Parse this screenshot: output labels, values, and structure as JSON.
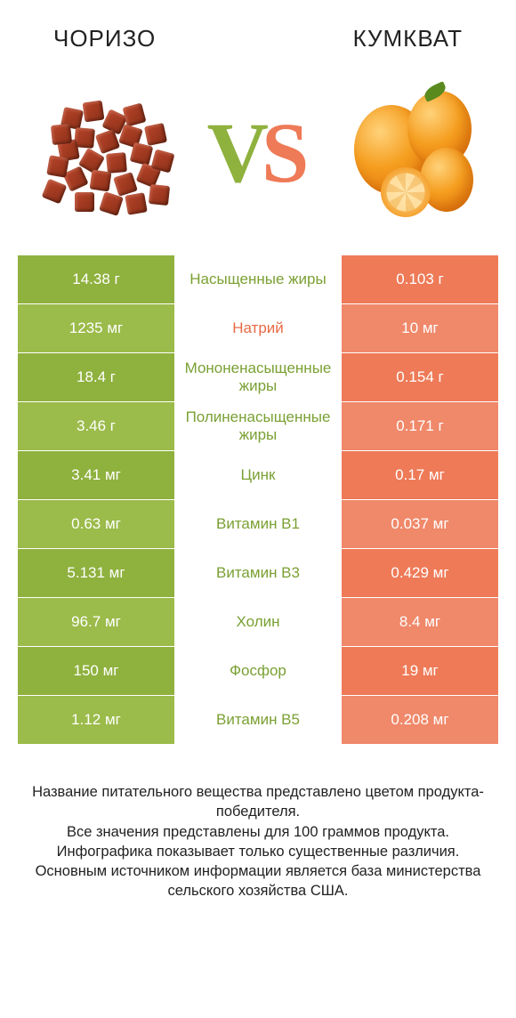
{
  "header": {
    "left_title": "ЧОРИЗО",
    "right_title": "КУМКВАТ"
  },
  "vs": {
    "v": "V",
    "s": "S"
  },
  "colors": {
    "left_bg": "#8fb13e",
    "left_bg_alt": "#9bbb4a",
    "right_bg": "#ee7a57",
    "right_bg_alt": "#f0886a",
    "mid_text_green": "#7aa033",
    "mid_text_orange": "#e76a45",
    "vs_v": "#8fb13e",
    "vs_s": "#ee7a57"
  },
  "rows": [
    {
      "left": "14.38 г",
      "mid": "Насыщенные жиры",
      "right": "0.103 г",
      "winner": "left"
    },
    {
      "left": "1235 мг",
      "mid": "Натрий",
      "right": "10 мг",
      "winner": "right"
    },
    {
      "left": "18.4 г",
      "mid": "Мононенасыщенные жиры",
      "right": "0.154 г",
      "winner": "left"
    },
    {
      "left": "3.46 г",
      "mid": "Полиненасыщенные жиры",
      "right": "0.171 г",
      "winner": "left"
    },
    {
      "left": "3.41 мг",
      "mid": "Цинк",
      "right": "0.17 мг",
      "winner": "left"
    },
    {
      "left": "0.63 мг",
      "mid": "Витамин B1",
      "right": "0.037 мг",
      "winner": "left"
    },
    {
      "left": "5.131 мг",
      "mid": "Витамин B3",
      "right": "0.429 мг",
      "winner": "left"
    },
    {
      "left": "96.7 мг",
      "mid": "Холин",
      "right": "8.4 мг",
      "winner": "left"
    },
    {
      "left": "150 мг",
      "mid": "Фосфор",
      "right": "19 мг",
      "winner": "left"
    },
    {
      "left": "1.12 мг",
      "mid": "Витамин B5",
      "right": "0.208 мг",
      "winner": "left"
    }
  ],
  "chorizo_cubes": [
    [
      30,
      30,
      12
    ],
    [
      54,
      22,
      -8
    ],
    [
      78,
      34,
      25
    ],
    [
      100,
      26,
      -15
    ],
    [
      44,
      52,
      5
    ],
    [
      70,
      56,
      -20
    ],
    [
      96,
      50,
      18
    ],
    [
      26,
      66,
      -10
    ],
    [
      52,
      78,
      30
    ],
    [
      80,
      80,
      -5
    ],
    [
      108,
      70,
      14
    ],
    [
      34,
      98,
      -25
    ],
    [
      62,
      100,
      8
    ],
    [
      90,
      104,
      -18
    ],
    [
      116,
      94,
      22
    ],
    [
      14,
      84,
      10
    ],
    [
      124,
      48,
      -12
    ],
    [
      44,
      124,
      0
    ],
    [
      74,
      126,
      18
    ],
    [
      102,
      126,
      -10
    ],
    [
      10,
      112,
      22
    ],
    [
      128,
      116,
      6
    ],
    [
      18,
      48,
      -6
    ],
    [
      132,
      78,
      15
    ]
  ],
  "footer_lines": [
    "Название питательного вещества представлено цветом продукта-победителя.",
    "Все значения представлены для 100 граммов продукта.",
    "Инфографика показывает только существенные различия.",
    "Основным источником информации является база министерства сельского хозяйства США."
  ],
  "typography": {
    "title_fontsize": 26,
    "cell_fontsize": 17,
    "mid_fontsize": 17,
    "vs_fontsize": 96,
    "footer_fontsize": 16.5
  }
}
